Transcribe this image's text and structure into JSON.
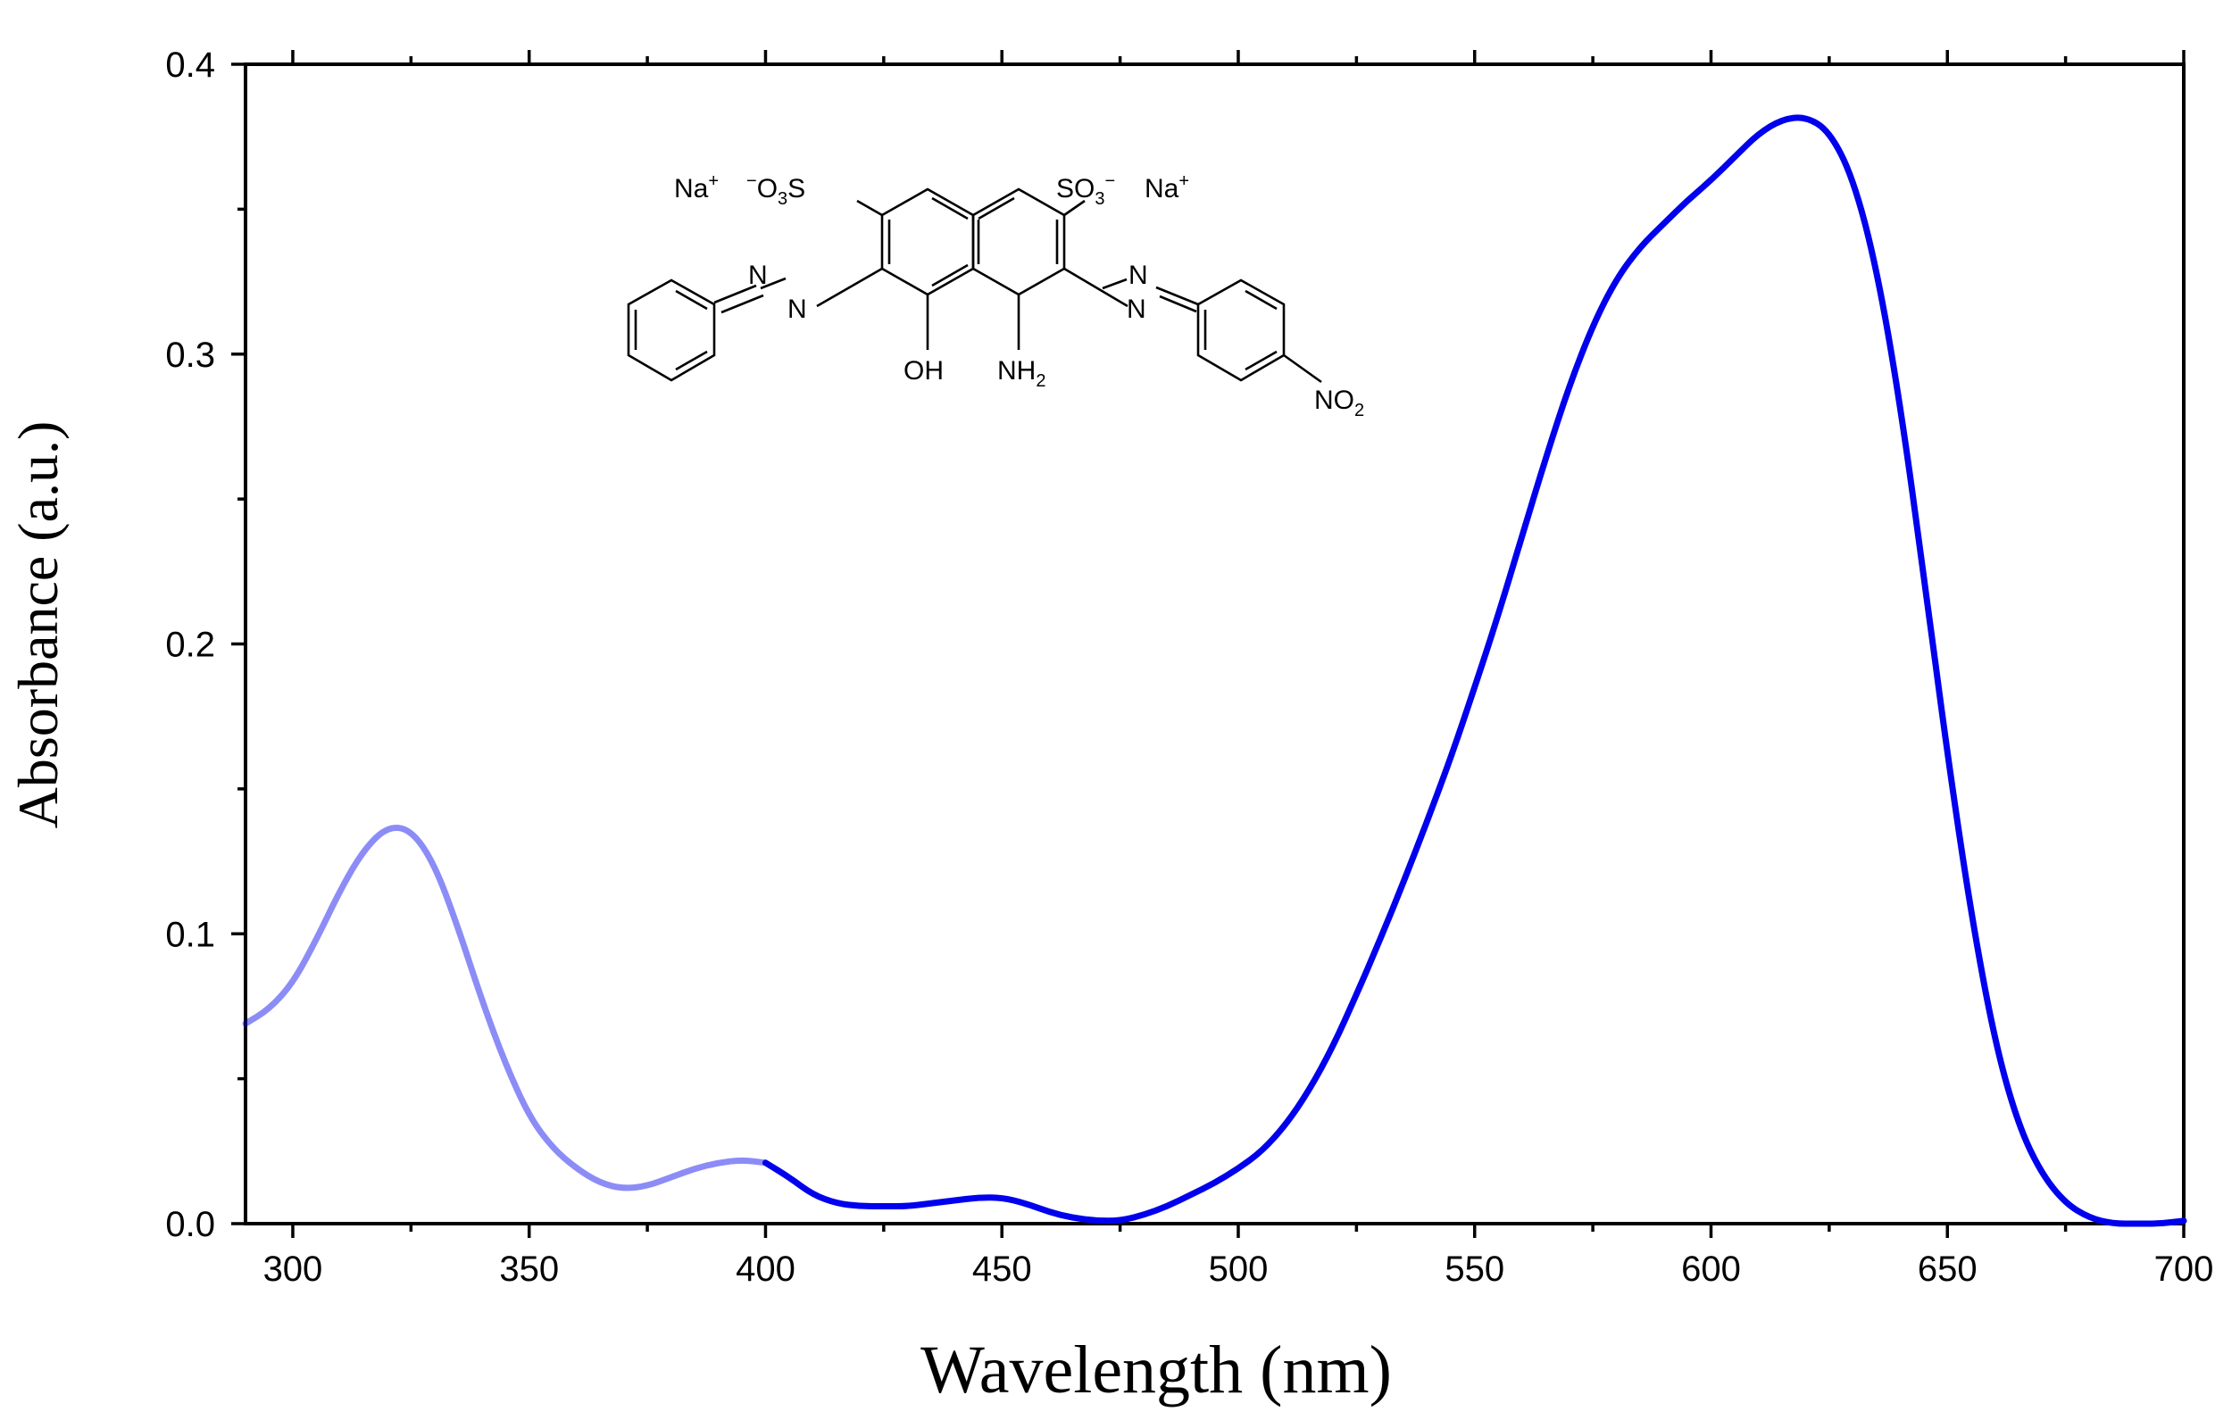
{
  "chart_data": {
    "type": "line",
    "title": "",
    "xlabel": "Wavelength (nm)",
    "ylabel": "Absorbance (a.u.)",
    "xlim": [
      290,
      700
    ],
    "ylim": [
      0,
      0.4
    ],
    "x_ticks": [
      300,
      350,
      400,
      450,
      500,
      550,
      600,
      650,
      700
    ],
    "y_ticks": [
      0.0,
      0.1,
      0.2,
      0.3,
      0.4
    ],
    "x_tick_labels": [
      "300",
      "350",
      "400",
      "450",
      "500",
      "550",
      "600",
      "650",
      "700"
    ],
    "y_tick_labels": [
      "0.0",
      "0.1",
      "0.2",
      "0.3",
      "0.4"
    ],
    "grid": false,
    "legend": "none",
    "series": [
      {
        "color": "#0000ee",
        "x": [
          290,
          295,
          300,
          305,
          310,
          315,
          320,
          325,
          330,
          335,
          340,
          345,
          350,
          355,
          360,
          365,
          370,
          375,
          380,
          385,
          390,
          395,
          400,
          405,
          410,
          415,
          420,
          425,
          430,
          435,
          440,
          445,
          450,
          455,
          460,
          465,
          470,
          475,
          480,
          485,
          490,
          495,
          500,
          505,
          510,
          515,
          520,
          525,
          530,
          535,
          540,
          545,
          550,
          555,
          560,
          565,
          570,
          575,
          580,
          585,
          590,
          595,
          600,
          605,
          610,
          615,
          620,
          625,
          630,
          635,
          640,
          645,
          650,
          655,
          660,
          665,
          670,
          675,
          680,
          685,
          690,
          695,
          700
        ],
        "y": [
          0.069,
          0.074,
          0.083,
          0.098,
          0.115,
          0.129,
          0.137,
          0.136,
          0.124,
          0.102,
          0.077,
          0.055,
          0.037,
          0.026,
          0.019,
          0.014,
          0.012,
          0.013,
          0.016,
          0.019,
          0.021,
          0.022,
          0.021,
          0.016,
          0.01,
          0.007,
          0.006,
          0.006,
          0.006,
          0.007,
          0.008,
          0.009,
          0.009,
          0.007,
          0.004,
          0.002,
          0.001,
          0.001,
          0.003,
          0.006,
          0.01,
          0.014,
          0.019,
          0.025,
          0.034,
          0.046,
          0.061,
          0.079,
          0.098,
          0.118,
          0.139,
          0.161,
          0.185,
          0.21,
          0.237,
          0.264,
          0.289,
          0.31,
          0.326,
          0.337,
          0.345,
          0.353,
          0.36,
          0.368,
          0.376,
          0.381,
          0.382,
          0.377,
          0.361,
          0.33,
          0.283,
          0.224,
          0.162,
          0.107,
          0.063,
          0.034,
          0.017,
          0.007,
          0.002,
          0.0,
          0.0,
          0.0,
          0.001
        ],
        "faded_below_x": 400
      }
    ],
    "annotations": [
      {
        "type": "chemical-structure",
        "labels": [
          "Na",
          "+",
          "−",
          "O",
          "3",
          "S",
          "SO",
          "3",
          "−",
          "Na",
          "+",
          "N",
          "N",
          "N",
          "N",
          "OH",
          "NH",
          "2",
          "NO",
          "2"
        ]
      }
    ]
  }
}
